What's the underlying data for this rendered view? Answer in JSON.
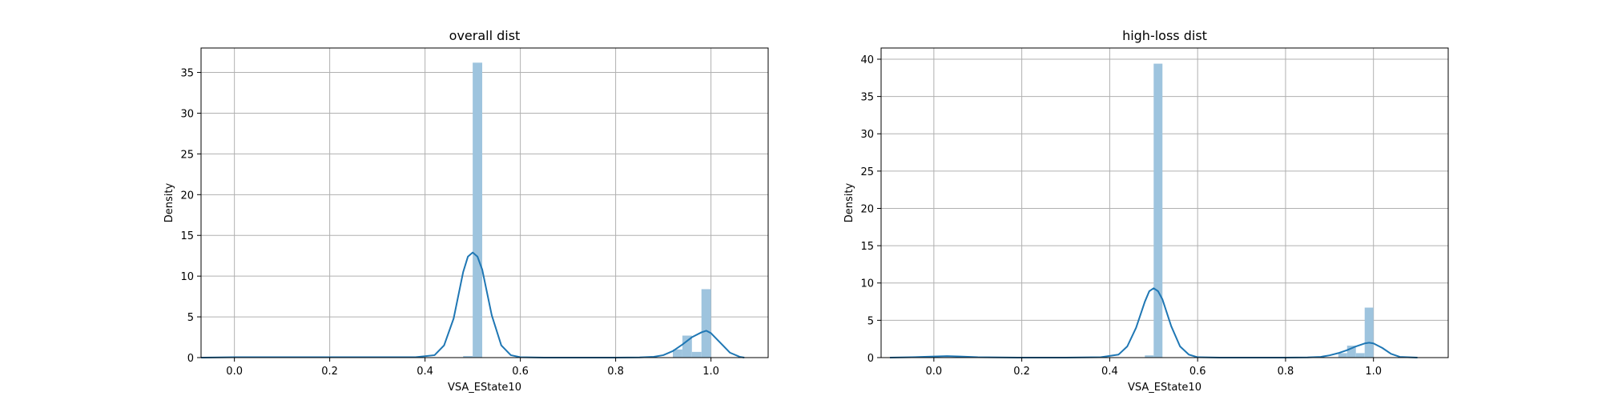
{
  "chart_data": [
    {
      "type": "bar",
      "title": "overall dist",
      "xlabel": "VSA_EState10",
      "ylabel": "Density",
      "xlim": [
        -0.07,
        1.12
      ],
      "ylim": [
        0,
        38
      ],
      "xticks": [
        0.0,
        0.2,
        0.4,
        0.6,
        0.8,
        1.0
      ],
      "xtick_labels": [
        "0.0",
        "0.2",
        "0.4",
        "0.6",
        "0.8",
        "1.0"
      ],
      "yticks": [
        0,
        5,
        10,
        15,
        20,
        25,
        30,
        35
      ],
      "ytick_labels": [
        "0",
        "5",
        "10",
        "15",
        "20",
        "25",
        "30",
        "35"
      ],
      "grid": true,
      "bar_color": "#9ec4de",
      "line_color": "#1f77b4",
      "histogram": {
        "bin_width": 0.02,
        "bins": [
          {
            "x": 0.01,
            "y": 0.05
          },
          {
            "x": 0.49,
            "y": 0.2
          },
          {
            "x": 0.51,
            "y": 36.2
          },
          {
            "x": 0.93,
            "y": 1.0
          },
          {
            "x": 0.95,
            "y": 2.7
          },
          {
            "x": 0.97,
            "y": 0.7
          },
          {
            "x": 0.99,
            "y": 8.4
          }
        ]
      },
      "kde": {
        "x": [
          -0.07,
          0.0,
          0.1,
          0.2,
          0.3,
          0.38,
          0.42,
          0.44,
          0.46,
          0.48,
          0.49,
          0.5,
          0.51,
          0.52,
          0.54,
          0.56,
          0.58,
          0.6,
          0.65,
          0.7,
          0.8,
          0.85,
          0.88,
          0.9,
          0.92,
          0.94,
          0.96,
          0.98,
          0.99,
          1.0,
          1.02,
          1.04,
          1.06,
          1.07
        ],
        "y": [
          0.0,
          0.05,
          0.05,
          0.05,
          0.05,
          0.05,
          0.3,
          1.5,
          4.8,
          10.5,
          12.4,
          12.9,
          12.4,
          10.8,
          5.2,
          1.5,
          0.3,
          0.05,
          0.0,
          0.0,
          0.0,
          0.03,
          0.1,
          0.3,
          0.8,
          1.6,
          2.5,
          3.1,
          3.3,
          3.0,
          1.8,
          0.6,
          0.1,
          0.0
        ]
      }
    },
    {
      "type": "bar",
      "title": "high-loss dist",
      "xlabel": "VSA_EState10",
      "ylabel": "Density",
      "xlim": [
        -0.12,
        1.17
      ],
      "ylim": [
        0,
        41.5
      ],
      "xticks": [
        0.0,
        0.2,
        0.4,
        0.6,
        0.8,
        1.0
      ],
      "xtick_labels": [
        "0.0",
        "0.2",
        "0.4",
        "0.6",
        "0.8",
        "1.0"
      ],
      "yticks": [
        0,
        5,
        10,
        15,
        20,
        25,
        30,
        35,
        40
      ],
      "ytick_labels": [
        "0",
        "5",
        "10",
        "15",
        "20",
        "25",
        "30",
        "35",
        "40"
      ],
      "grid": true,
      "bar_color": "#9ec4de",
      "line_color": "#1f77b4",
      "histogram": {
        "bin_width": 0.02,
        "bins": [
          {
            "x": 0.01,
            "y": 0.05
          },
          {
            "x": 0.49,
            "y": 0.3
          },
          {
            "x": 0.51,
            "y": 39.4
          },
          {
            "x": 0.93,
            "y": 0.6
          },
          {
            "x": 0.95,
            "y": 1.6
          },
          {
            "x": 0.97,
            "y": 0.6
          },
          {
            "x": 0.99,
            "y": 6.7
          }
        ]
      },
      "kde": {
        "x": [
          -0.1,
          -0.05,
          0.0,
          0.03,
          0.06,
          0.1,
          0.2,
          0.3,
          0.38,
          0.42,
          0.44,
          0.46,
          0.48,
          0.49,
          0.5,
          0.51,
          0.52,
          0.54,
          0.56,
          0.58,
          0.6,
          0.65,
          0.7,
          0.8,
          0.85,
          0.88,
          0.9,
          0.92,
          0.94,
          0.96,
          0.98,
          0.99,
          1.0,
          1.02,
          1.04,
          1.06,
          1.1
        ],
        "y": [
          0.0,
          0.05,
          0.15,
          0.2,
          0.15,
          0.05,
          0.0,
          0.0,
          0.05,
          0.4,
          1.5,
          4.0,
          7.5,
          8.9,
          9.3,
          8.9,
          7.8,
          4.2,
          1.5,
          0.4,
          0.05,
          0.0,
          0.0,
          0.0,
          0.03,
          0.1,
          0.3,
          0.6,
          1.0,
          1.5,
          1.9,
          2.0,
          1.9,
          1.3,
          0.5,
          0.1,
          0.0
        ]
      }
    }
  ]
}
